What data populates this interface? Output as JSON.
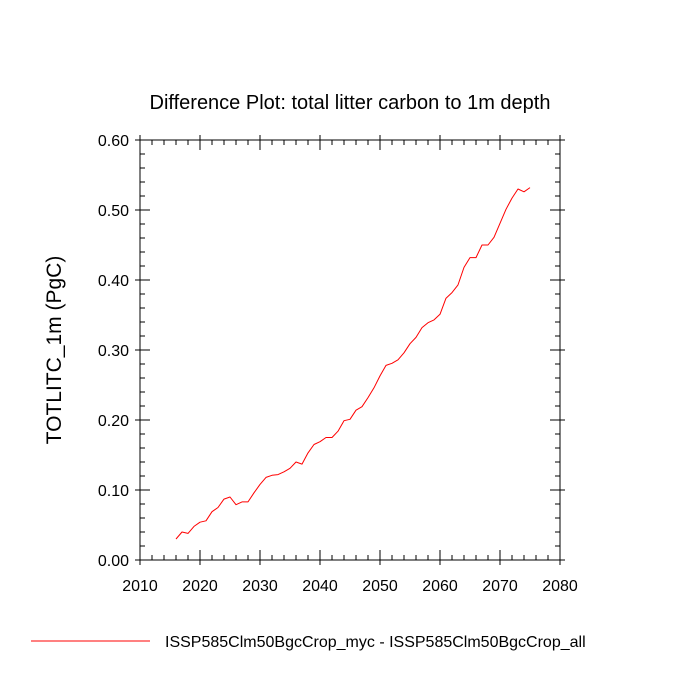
{
  "chart_data": {
    "type": "line",
    "title": "Difference Plot: total litter carbon to 1m depth",
    "xlabel": "",
    "ylabel": "TOTLITC_1m  (PgC)",
    "xlim": [
      2010,
      2080
    ],
    "ylim": [
      0.0,
      0.6
    ],
    "xticks": [
      "2010",
      "2020",
      "2030",
      "2040",
      "2050",
      "2060",
      "2070",
      "2080"
    ],
    "yticks": [
      "0.00",
      "0.10",
      "0.20",
      "0.30",
      "0.40",
      "0.50",
      "0.60"
    ],
    "grid": false,
    "legend_position": "bottom",
    "series": [
      {
        "name": "ISSP585Clm50BgcCrop_myc - ISSP585Clm50BgcCrop_all",
        "color": "#ff0000",
        "x": [
          2016,
          2017,
          2018,
          2019,
          2020,
          2021,
          2022,
          2023,
          2024,
          2025,
          2026,
          2027,
          2028,
          2029,
          2030,
          2031,
          2032,
          2033,
          2034,
          2035,
          2036,
          2037,
          2038,
          2039,
          2040,
          2041,
          2042,
          2043,
          2044,
          2045,
          2046,
          2047,
          2048,
          2049,
          2050,
          2051,
          2052,
          2053,
          2054,
          2055,
          2056,
          2057,
          2058,
          2059,
          2060,
          2061,
          2062,
          2063,
          2064,
          2065,
          2066,
          2067,
          2068,
          2069,
          2070,
          2071,
          2072,
          2073,
          2074,
          2075
        ],
        "y": [
          0.03,
          0.04,
          0.038,
          0.048,
          0.054,
          0.056,
          0.069,
          0.075,
          0.087,
          0.09,
          0.079,
          0.083,
          0.083,
          0.096,
          0.108,
          0.118,
          0.121,
          0.122,
          0.126,
          0.131,
          0.14,
          0.137,
          0.153,
          0.165,
          0.169,
          0.175,
          0.175,
          0.184,
          0.199,
          0.201,
          0.214,
          0.219,
          0.232,
          0.246,
          0.263,
          0.278,
          0.281,
          0.286,
          0.296,
          0.309,
          0.318,
          0.332,
          0.339,
          0.343,
          0.351,
          0.374,
          0.382,
          0.393,
          0.418,
          0.432,
          0.432,
          0.45,
          0.45,
          0.461,
          0.481,
          0.501,
          0.517,
          0.53,
          0.526,
          0.532
        ]
      }
    ]
  }
}
